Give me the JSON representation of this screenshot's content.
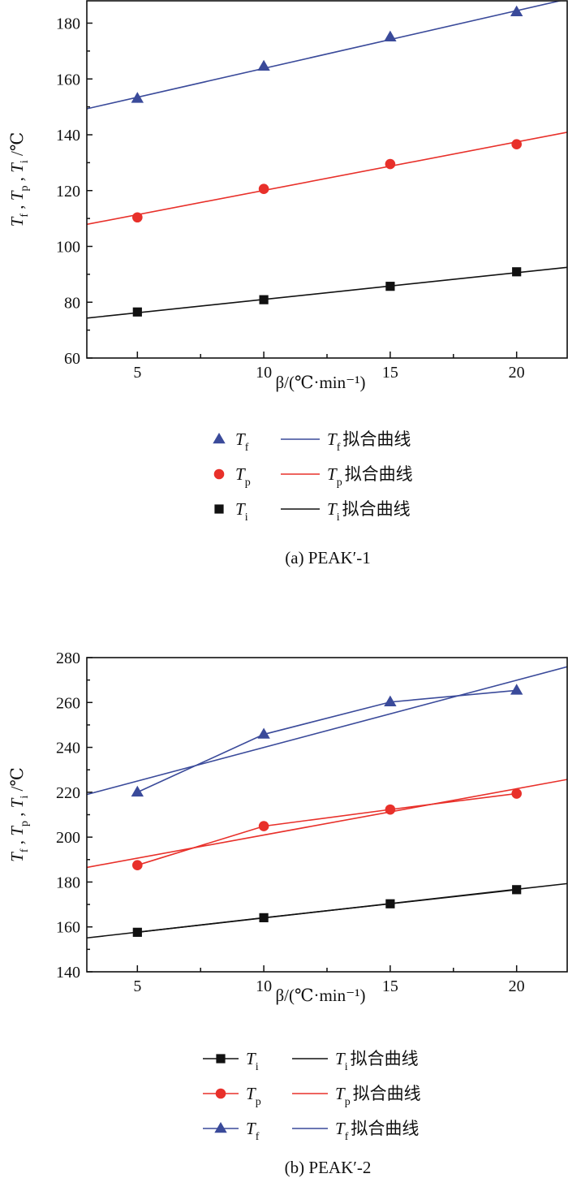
{
  "colors": {
    "Tf": "#3a4a9a",
    "Tp": "#e8302a",
    "Ti": "#111111"
  },
  "chart_data": [
    {
      "type": "scatter",
      "caption": "(a) PEAK′-1",
      "xlabel": "β/(℃·min⁻¹)",
      "ylabel": "Tf , Tp , Ti /℃",
      "xlim": [
        3,
        22
      ],
      "ylim": [
        60,
        188
      ],
      "xticks": [
        5,
        10,
        15,
        20
      ],
      "yticks": [
        60,
        80,
        100,
        120,
        140,
        160,
        180
      ],
      "x": [
        5,
        10,
        15,
        20
      ],
      "connect_points": false,
      "series": [
        {
          "key": "Tf",
          "name": "Tf",
          "sub": "f",
          "marker": "triangle",
          "values": [
            153,
            164.5,
            175,
            184
          ],
          "fit": [
            149.3,
            188.6
          ],
          "fit_label": "Tf 拟合曲线"
        },
        {
          "key": "Tp",
          "name": "Tp",
          "sub": "p",
          "marker": "circle",
          "values": [
            110.4,
            120.6,
            129.5,
            136.6
          ],
          "fit": [
            107.9,
            140.9
          ],
          "fit_label": "Tp 拟合曲线"
        },
        {
          "key": "Ti",
          "name": "Ti",
          "sub": "i",
          "marker": "square",
          "values": [
            76.5,
            80.9,
            85.7,
            90.9
          ],
          "fit": [
            74.3,
            92.5
          ],
          "fit_label": "Ti 拟合曲线"
        }
      ],
      "legend_order": [
        "Tf",
        "Tp",
        "Ti"
      ],
      "legend_placement": "bottom"
    },
    {
      "type": "line",
      "caption": "(b) PEAK′-2",
      "xlabel": "β/(℃·min⁻¹)",
      "ylabel": "Tf , Tp , Ti /℃",
      "xlim": [
        3,
        22
      ],
      "ylim": [
        140,
        280
      ],
      "xticks": [
        5,
        10,
        15,
        20
      ],
      "yticks": [
        140,
        160,
        180,
        200,
        220,
        240,
        260,
        280
      ],
      "x": [
        5,
        10,
        15,
        20
      ],
      "connect_points": true,
      "series": [
        {
          "key": "Ti",
          "name": "Ti",
          "sub": "i",
          "marker": "square",
          "values": [
            157.6,
            164.1,
            170.3,
            176.6
          ],
          "fit": [
            155.1,
            179.3
          ],
          "fit_label": "Ti 拟合曲线"
        },
        {
          "key": "Tp",
          "name": "Tp",
          "sub": "p",
          "marker": "circle",
          "values": [
            187.5,
            204.9,
            212.3,
            219.4
          ],
          "fit": [
            186.5,
            225.7
          ],
          "fit_label": "Tp 拟合曲线"
        },
        {
          "key": "Tf",
          "name": "Tf",
          "sub": "f",
          "marker": "triangle",
          "values": [
            220,
            245.8,
            260.2,
            265.4
          ],
          "fit": [
            219,
            275.9
          ],
          "fit_label": "Tf 拟合曲线"
        }
      ],
      "legend_order": [
        "Ti",
        "Tp",
        "Tf"
      ],
      "legend_placement": "bottom"
    }
  ]
}
